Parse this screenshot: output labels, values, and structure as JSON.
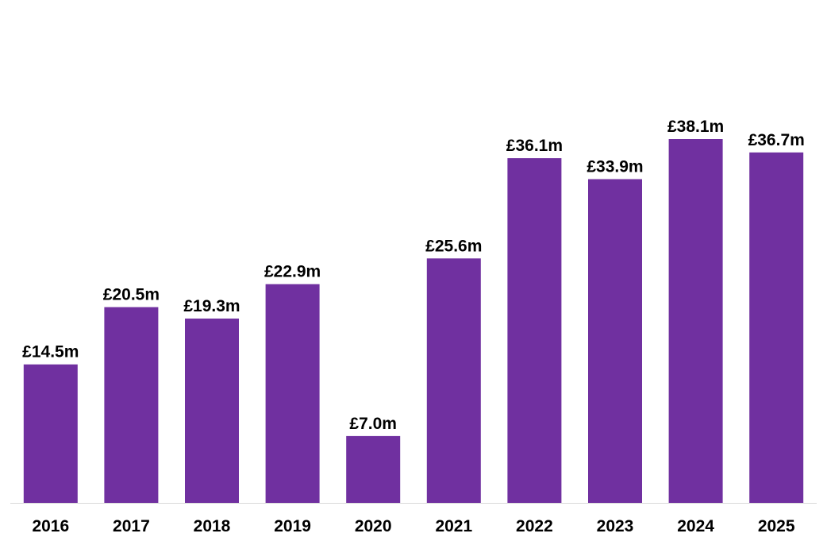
{
  "chart_data": {
    "type": "bar",
    "title": "",
    "xlabel": "",
    "ylabel": "",
    "categories": [
      "2016",
      "2017",
      "2018",
      "2019",
      "2020",
      "2021",
      "2022",
      "2023",
      "2024",
      "2025"
    ],
    "values": [
      14.5,
      20.5,
      19.3,
      22.9,
      7.0,
      25.6,
      36.1,
      33.9,
      38.1,
      36.7
    ],
    "data_labels": [
      "£14.5m",
      "£20.5m",
      "£19.3m",
      "£22.9m",
      "£7.0m",
      "£25.6m",
      "£36.1m",
      "£33.9m",
      "£38.1m",
      "£36.7m"
    ],
    "ylim": [
      0,
      50
    ],
    "grid": false,
    "legend": "none",
    "bar_color": "#7030a0",
    "axis_color": "#d9d9d9"
  }
}
